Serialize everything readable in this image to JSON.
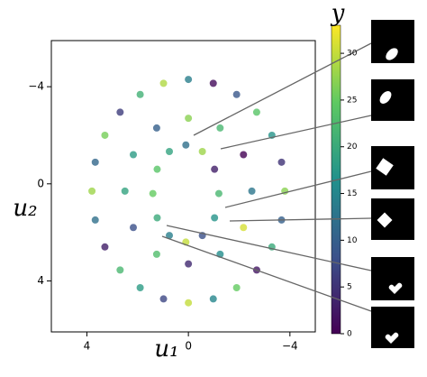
{
  "chart_data": {
    "type": "scatter",
    "x_label": "u₁",
    "y_label": "u₂",
    "colorbar_label": "y",
    "xlim": [
      5.4,
      -5.0
    ],
    "ylim": [
      6.1,
      -5.9
    ],
    "xticks": [
      4,
      0,
      {
        "value": -4,
        "label": "−4"
      }
    ],
    "yticks": [
      {
        "value": -4,
        "label": "−4"
      },
      0,
      4
    ],
    "clim": [
      0,
      33
    ],
    "cticks": [
      0,
      5,
      10,
      15,
      20,
      25,
      30
    ],
    "colormap": "viridis",
    "x": [
      3.8,
      3.67,
      3.29,
      2.69,
      1.9,
      0.98,
      0,
      -0.98,
      -1.9,
      -2.69,
      -3.29,
      -3.67,
      -3.8,
      -3.67,
      -3.29,
      -2.69,
      -1.9,
      -0.98,
      0,
      0.98,
      1.9,
      2.69,
      3.29,
      3.67,
      2.5,
      2.17,
      1.25,
      0,
      -1.25,
      -2.17,
      -2.5,
      -2.17,
      -1.25,
      0,
      1.25,
      2.17,
      1.4,
      1.23,
      0.75,
      0.1,
      -0.55,
      -1.03,
      -1.2,
      -1.03,
      -0.55,
      0.1,
      0.75,
      1.23
    ],
    "y": [
      0.3,
      1.49,
      2.6,
      3.55,
      4.28,
      4.74,
      4.9,
      4.74,
      4.28,
      3.55,
      2.6,
      1.49,
      0.3,
      -0.89,
      -2.0,
      -2.95,
      -3.68,
      -4.14,
      -4.3,
      -4.14,
      -3.68,
      -2.95,
      -2.0,
      -0.89,
      0.3,
      1.8,
      2.9,
      3.3,
      2.9,
      1.8,
      0.3,
      -1.2,
      -2.3,
      -2.7,
      -2.3,
      -1.2,
      0.4,
      1.4,
      2.13,
      2.4,
      2.13,
      1.4,
      0.4,
      -0.6,
      -1.33,
      -1.6,
      -1.33,
      -0.6
    ],
    "c": [
      28,
      12,
      3,
      22,
      18,
      7,
      30,
      15,
      25,
      2,
      20,
      10,
      27,
      5,
      17,
      24,
      9,
      1,
      14,
      29,
      21,
      6,
      26,
      11,
      19,
      8,
      23,
      4,
      16,
      31,
      13,
      0,
      22,
      27,
      10,
      18,
      25,
      20,
      14,
      30,
      8,
      17,
      22,
      3,
      28,
      12,
      19,
      24
    ]
  }
}
